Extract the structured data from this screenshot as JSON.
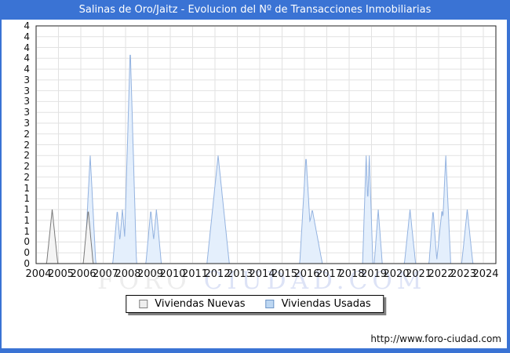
{
  "window": {
    "title": "Salinas de Oro/Jaitz - Evolucion del Nº de Transacciones Inmobiliarias"
  },
  "colors": {
    "titlebar_bg": "#3a73d4",
    "title_text": "#ffffff",
    "window_border": "#3a73d4",
    "grid": "#e2e2e2",
    "plot_border": "#222222",
    "watermark_gray": "#ededed",
    "watermark_blue": "#dde3f6",
    "nuevas_fill": "#f4f4f4",
    "nuevas_stroke": "#7a7a7a",
    "usadas_fill": "#e4effc",
    "usadas_stroke": "#94b3e0"
  },
  "legend": {
    "items": [
      {
        "label": "Viviendas Nuevas",
        "swatch_fill": "#eeeeee",
        "swatch_border": "#808080"
      },
      {
        "label": "Viviendas Usadas",
        "swatch_fill": "#bdd7f2",
        "swatch_border": "#6e96c8"
      }
    ]
  },
  "watermark": {
    "part1": "FORO",
    "part2": "CIUDAD.COM"
  },
  "footer": {
    "url": "http://www.foro-ciudad.com"
  },
  "chart_data": {
    "type": "area",
    "title": "Salinas de Oro/Jaitz - Evolucion del Nº de Transacciones Inmobiliarias",
    "xlabel": "",
    "ylabel": "",
    "grid": true,
    "legend_position": "bottom-center",
    "x_axis": {
      "start": 2004,
      "end": 2024.56,
      "tick_labels": [
        "2004",
        "2005",
        "2006",
        "2007",
        "2008",
        "2009",
        "2010",
        "2011",
        "2012",
        "2013",
        "2014",
        "2015",
        "2016",
        "2017",
        "2018",
        "2019",
        "2020",
        "2021",
        "2022",
        "2023",
        "2024"
      ]
    },
    "y_axis": {
      "min": 0,
      "max": 4.4,
      "grid_step": 0.2,
      "tick_labels": [
        "4",
        "4",
        "4",
        "4",
        "4",
        "3",
        "3",
        "3",
        "3",
        "3",
        "2",
        "2",
        "2",
        "2",
        "2",
        "1",
        "1",
        "1",
        "1",
        "1",
        "0",
        "0",
        "0"
      ]
    },
    "series": [
      {
        "name": "Viviendas Usadas",
        "fill": "#e4effc",
        "stroke": "#94b3e0",
        "points": [
          {
            "label": "2006-Q2",
            "x": 2006.42,
            "v": 2,
            "hw": 0.25
          },
          {
            "label": "2007-Q3",
            "x": 2007.63,
            "v": 1,
            "hw": 0.2
          },
          {
            "label": "2007-Q4",
            "x": 2007.86,
            "v": 1,
            "hw": 0.2
          },
          {
            "label": "2008-Q2",
            "x": 2008.21,
            "v": 4,
            "hw": 0.28
          },
          {
            "label": "2009-Q1",
            "x": 2009.13,
            "v": 1,
            "hw": 0.22
          },
          {
            "label": "2009-Q2",
            "x": 2009.38,
            "v": 1,
            "hw": 0.22
          },
          {
            "label": "2012-Q1",
            "x": 2012.14,
            "v": 2,
            "hw": 0.5
          },
          {
            "label": "2016-Q1",
            "x": 2016.07,
            "v": 2,
            "hw": 0.28
          },
          {
            "label": "2016-Q2",
            "x": 2016.35,
            "v": 1,
            "hw": 0.45
          },
          {
            "label": "2018-Q4",
            "x": 2018.76,
            "v": 2,
            "hw": 0.16
          },
          {
            "label": "2019-Q1",
            "x": 2018.9,
            "v": 2,
            "hw": 0.16
          },
          {
            "label": "2019-Q2",
            "x": 2019.3,
            "v": 1,
            "hw": 0.18
          },
          {
            "label": "2020-Q4",
            "x": 2020.72,
            "v": 1,
            "hw": 0.25
          },
          {
            "label": "2021-Q4",
            "x": 2021.75,
            "v": 1,
            "hw": 0.18
          },
          {
            "label": "2022-Q1",
            "x": 2022.15,
            "v": 1,
            "hw": 0.25
          },
          {
            "label": "2022-Q2",
            "x": 2022.32,
            "v": 2,
            "hw": 0.22
          },
          {
            "label": "2023-Q2",
            "x": 2023.28,
            "v": 1,
            "hw": 0.25
          }
        ]
      },
      {
        "name": "Viviendas Nuevas",
        "fill": "#f4f4f4",
        "stroke": "#7a7a7a",
        "points": [
          {
            "label": "2004-Q4",
            "x": 2004.72,
            "v": 1,
            "hw": 0.25
          },
          {
            "label": "2006-Q2",
            "x": 2006.33,
            "v": 1,
            "hw": 0.22
          }
        ]
      }
    ]
  }
}
